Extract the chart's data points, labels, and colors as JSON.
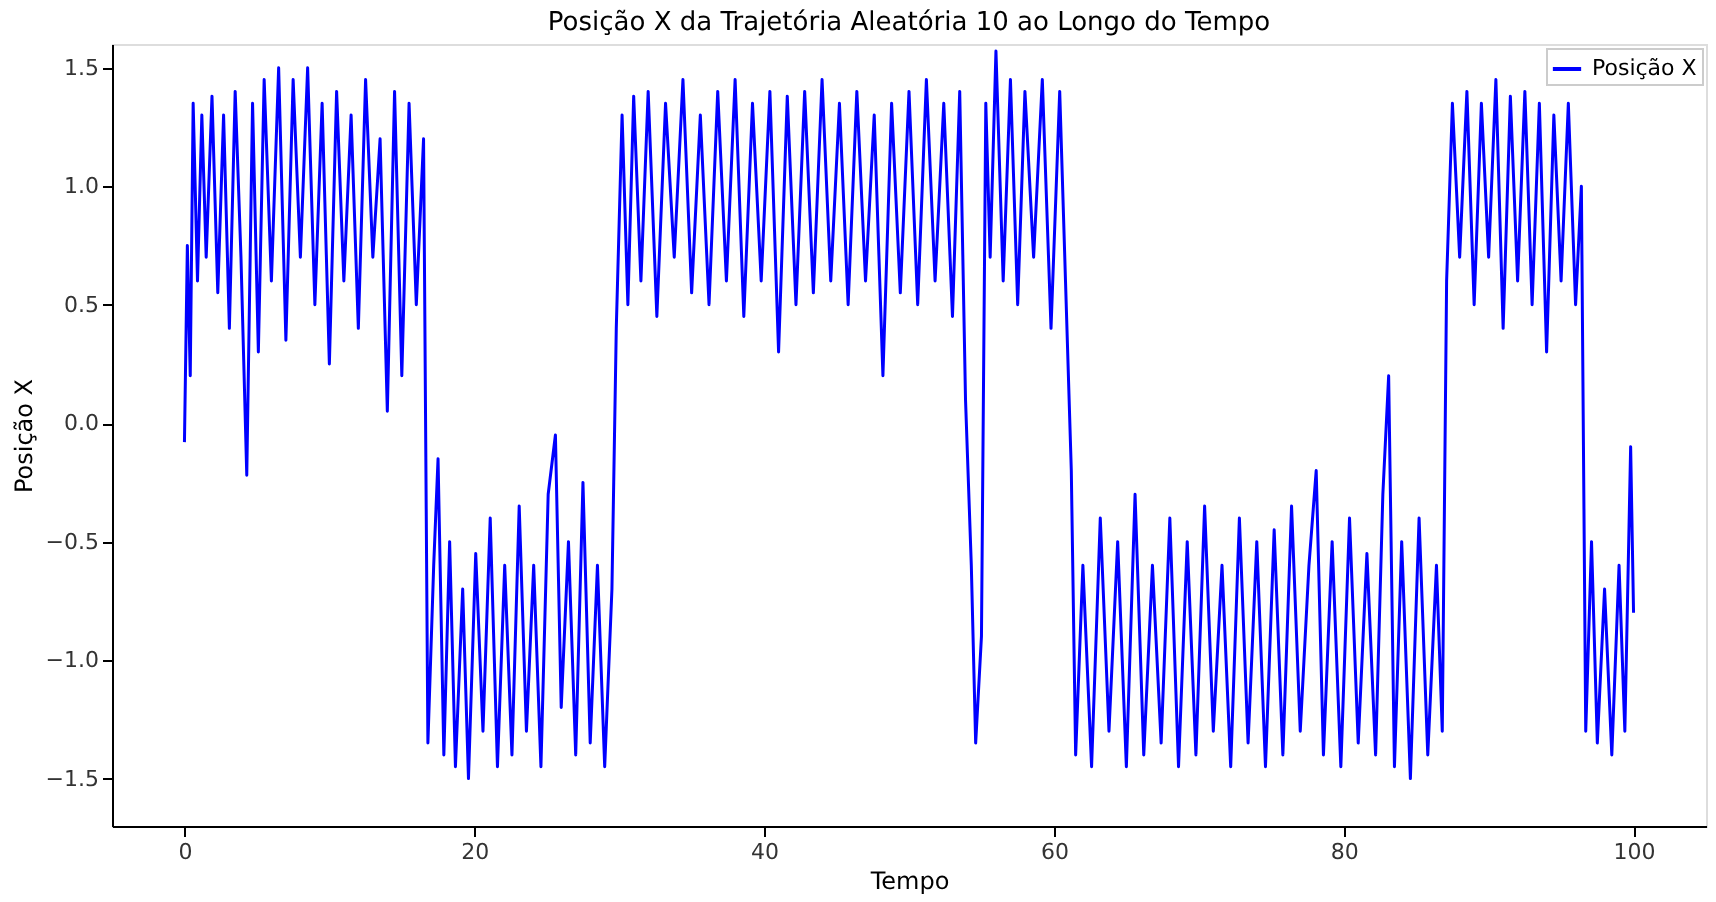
{
  "chart_data": {
    "type": "line",
    "title": "Posição X da Trajetória Aleatória 10 ao Longo do Tempo",
    "xlabel": "Tempo",
    "ylabel": "Posição X",
    "xlim": [
      -5,
      105
    ],
    "xticks": [
      0,
      20,
      40,
      60,
      80,
      100
    ],
    "ylim": [
      -1.7,
      1.6
    ],
    "yticks": [
      {
        "value": -1.5,
        "label": "−1.5"
      },
      {
        "value": -1.0,
        "label": "−1.0"
      },
      {
        "value": -0.5,
        "label": "−0.5"
      },
      {
        "value": 0,
        "label": "0.0"
      },
      0.5,
      {
        "value": 1.0,
        "label": "1.0"
      },
      1.5
    ],
    "grid": false,
    "legend": "top right",
    "marker": "none",
    "line_style": "solid",
    "x": [
      0,
      0.2,
      0.4,
      0.6,
      0.9,
      1.2,
      1.5,
      1.9,
      2.3,
      2.7,
      3.1,
      3.5,
      3.9,
      4.3,
      4.7,
      5.1,
      5.5,
      6.0,
      6.5,
      7.0,
      7.5,
      8.0,
      8.5,
      9.0,
      9.5,
      10.0,
      10.5,
      11.0,
      11.5,
      12.0,
      12.5,
      13.0,
      13.5,
      14.0,
      14.5,
      15.0,
      15.5,
      16.0,
      16.5,
      16.8,
      17.2,
      17.5,
      17.9,
      18.3,
      18.7,
      19.2,
      19.6,
      20.1,
      20.6,
      21.1,
      21.6,
      22.1,
      22.6,
      23.1,
      23.6,
      24.1,
      24.6,
      25.1,
      25.6,
      26.0,
      26.5,
      27.0,
      27.5,
      28.0,
      28.5,
      29.0,
      29.5,
      29.8,
      30.2,
      30.6,
      31.0,
      31.5,
      32.0,
      32.6,
      33.2,
      33.8,
      34.4,
      35.0,
      35.6,
      36.2,
      36.8,
      37.4,
      38.0,
      38.6,
      39.2,
      39.8,
      40.4,
      41.0,
      41.6,
      42.2,
      42.8,
      43.4,
      44.0,
      44.6,
      45.2,
      45.8,
      46.4,
      47.0,
      47.6,
      48.2,
      48.8,
      49.4,
      50.0,
      50.6,
      51.2,
      51.8,
      52.4,
      53.0,
      53.5,
      53.9,
      54.3,
      54.6,
      55.0,
      55.3,
      55.6,
      56.0,
      56.5,
      57.0,
      57.5,
      58.0,
      58.6,
      59.2,
      59.8,
      60.4,
      60.8,
      61.2,
      61.5,
      62.0,
      62.6,
      63.2,
      63.8,
      64.4,
      65.0,
      65.6,
      66.2,
      66.8,
      67.4,
      68.0,
      68.6,
      69.2,
      69.8,
      70.4,
      71.0,
      71.6,
      72.2,
      72.8,
      73.4,
      74.0,
      74.6,
      75.2,
      75.8,
      76.4,
      77.0,
      77.6,
      78.1,
      78.6,
      79.2,
      79.8,
      80.4,
      81.0,
      81.6,
      82.2,
      82.7,
      83.1,
      83.5,
      84.0,
      84.6,
      85.2,
      85.8,
      86.4,
      86.8,
      87.1,
      87.5,
      88.0,
      88.5,
      89.0,
      89.5,
      90.0,
      90.5,
      91.0,
      91.5,
      92.0,
      92.5,
      93.0,
      93.5,
      94.0,
      94.5,
      95.0,
      95.5,
      96.0,
      96.4,
      96.7,
      97.1,
      97.5,
      98.0,
      98.5,
      99.0,
      99.4,
      99.8,
      100
    ],
    "series": [
      {
        "name": "Posição X",
        "color": "#0000ff",
        "values": [
          -0.08,
          0.75,
          0.2,
          1.35,
          0.6,
          1.3,
          0.7,
          1.38,
          0.55,
          1.3,
          0.4,
          1.4,
          0.7,
          -0.22,
          1.35,
          0.3,
          1.45,
          0.6,
          1.5,
          0.35,
          1.45,
          0.7,
          1.5,
          0.5,
          1.35,
          0.25,
          1.4,
          0.6,
          1.3,
          0.4,
          1.45,
          0.7,
          1.2,
          0.05,
          1.4,
          0.2,
          1.35,
          0.5,
          1.2,
          -1.35,
          -0.6,
          -0.15,
          -1.4,
          -0.5,
          -1.45,
          -0.7,
          -1.5,
          -0.55,
          -1.3,
          -0.4,
          -1.45,
          -0.6,
          -1.4,
          -0.35,
          -1.3,
          -0.6,
          -1.45,
          -0.3,
          -0.05,
          -1.2,
          -0.5,
          -1.4,
          -0.25,
          -1.35,
          -0.6,
          -1.45,
          -0.7,
          0.4,
          1.3,
          0.5,
          1.38,
          0.6,
          1.4,
          0.45,
          1.35,
          0.7,
          1.45,
          0.55,
          1.3,
          0.5,
          1.4,
          0.6,
          1.45,
          0.45,
          1.35,
          0.6,
          1.4,
          0.3,
          1.38,
          0.5,
          1.4,
          0.55,
          1.45,
          0.6,
          1.35,
          0.5,
          1.4,
          0.6,
          1.3,
          0.2,
          1.35,
          0.55,
          1.4,
          0.5,
          1.45,
          0.6,
          1.35,
          0.45,
          1.4,
          0.1,
          -0.6,
          -1.35,
          -0.9,
          1.35,
          0.7,
          1.57,
          0.6,
          1.45,
          0.5,
          1.4,
          0.7,
          1.45,
          0.4,
          1.4,
          0.6,
          -0.2,
          -1.4,
          -0.6,
          -1.45,
          -0.4,
          -1.3,
          -0.5,
          -1.45,
          -0.3,
          -1.4,
          -0.6,
          -1.35,
          -0.4,
          -1.45,
          -0.5,
          -1.4,
          -0.35,
          -1.3,
          -0.6,
          -1.45,
          -0.4,
          -1.35,
          -0.5,
          -1.45,
          -0.45,
          -1.4,
          -0.35,
          -1.3,
          -0.6,
          -0.2,
          -1.4,
          -0.5,
          -1.45,
          -0.4,
          -1.35,
          -0.55,
          -1.4,
          -0.3,
          0.2,
          -1.45,
          -0.5,
          -1.5,
          -0.4,
          -1.4,
          -0.6,
          -1.3,
          0.6,
          1.35,
          0.7,
          1.4,
          0.5,
          1.35,
          0.7,
          1.45,
          0.4,
          1.38,
          0.6,
          1.4,
          0.5,
          1.35,
          0.3,
          1.3,
          0.6,
          1.35,
          0.5,
          1.0,
          -1.3,
          -0.5,
          -1.35,
          -0.7,
          -1.4,
          -0.6,
          -1.3,
          -0.1,
          -0.8
        ]
      }
    ]
  }
}
